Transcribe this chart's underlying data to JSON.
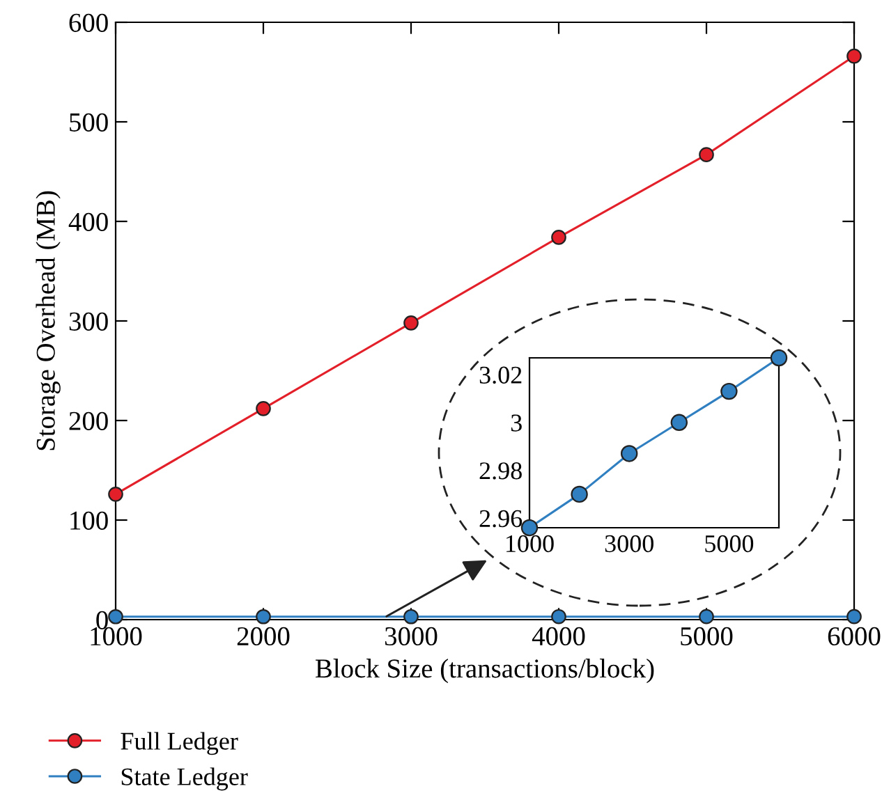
{
  "chart_data": [
    {
      "type": "line",
      "xlabel": "Block Size (transactions/block)",
      "ylabel": "Storage Overhead (MB)",
      "x": [
        1000,
        2000,
        3000,
        4000,
        5000,
        6000
      ],
      "series": [
        {
          "name": "Full Ledger",
          "color": "#e3202a",
          "values": [
            126,
            212,
            298,
            384,
            467,
            566
          ]
        },
        {
          "name": "State Ledger",
          "color": "#2f7fc1",
          "values": [
            2.956,
            2.97,
            2.987,
            3.0,
            3.013,
            3.027
          ]
        }
      ],
      "xlim": [
        1000,
        6000
      ],
      "xticks": [
        1000,
        2000,
        3000,
        4000,
        5000,
        6000
      ],
      "ylim": [
        0,
        600
      ],
      "yticks": [
        0,
        100,
        200,
        300,
        400,
        500,
        600
      ],
      "grid": false,
      "legend": "bottom",
      "marker": "circle",
      "line_style": "solid"
    },
    {
      "type": "line",
      "x": [
        1000,
        2000,
        3000,
        4000,
        5000,
        6000
      ],
      "series": [
        {
          "color": "#2f7fc1",
          "values": [
            2.956,
            2.97,
            2.987,
            3.0,
            3.013,
            3.027
          ]
        }
      ],
      "xlim": [
        1000,
        6000
      ],
      "xticks": [
        1000,
        3000,
        5000
      ],
      "ylim": [
        2.956,
        3.027
      ],
      "yticks": [
        2.96,
        2.98,
        {
          "value": 3,
          "label": "3"
        },
        3.02
      ],
      "grid": false,
      "legend": false,
      "marker": "circle",
      "line_style": "solid"
    }
  ]
}
